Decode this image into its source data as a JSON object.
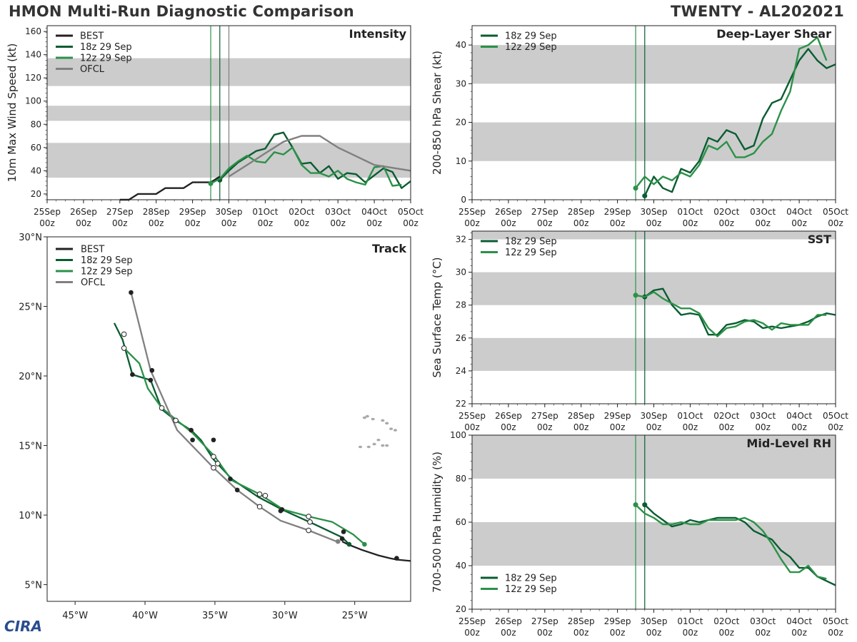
{
  "header": {
    "left": "HMON Multi-Run Diagnostic Comparison",
    "right": "TWENTY - AL202021"
  },
  "logo": {
    "text": "CIRA"
  },
  "time_ticks": [
    {
      "top": "25Sep",
      "bottom": "00z"
    },
    {
      "top": "26Sep",
      "bottom": "00z"
    },
    {
      "top": "27Sep",
      "bottom": "00z"
    },
    {
      "top": "28Sep",
      "bottom": "00z"
    },
    {
      "top": "29Sep",
      "bottom": "00z"
    },
    {
      "top": "30Sep",
      "bottom": "00z"
    },
    {
      "top": "01Oct",
      "bottom": "00z"
    },
    {
      "top": "02Oct",
      "bottom": "00z"
    },
    {
      "top": "03Oct",
      "bottom": "00z"
    },
    {
      "top": "04Oct",
      "bottom": "00z"
    },
    {
      "top": "05Oct",
      "bottom": "00z"
    }
  ],
  "colors": {
    "best": "#222222",
    "run18": "#0a5c32",
    "run12": "#2b9148",
    "ofcl": "#808080",
    "band": "#cccccc"
  },
  "chart_data": [
    {
      "id": "intensity",
      "type": "line",
      "title": "Intensity",
      "ylabel": "10m Max Wind Speed (kt)",
      "xlim": [
        0,
        10
      ],
      "ylim": [
        15,
        165
      ],
      "yticks": [
        20,
        40,
        60,
        80,
        100,
        120,
        140,
        160
      ],
      "bands": [
        [
          34,
          64
        ],
        [
          83,
          96
        ],
        [
          113,
          137
        ]
      ],
      "init_lines": [
        4.5,
        4.75,
        5.0
      ],
      "series": [
        {
          "name": "BEST",
          "color": "best",
          "x": [
            2,
            2.25,
            2.5,
            2.75,
            3,
            3.25,
            3.5,
            3.75,
            4,
            4.25,
            4.5,
            4.75
          ],
          "y": [
            15,
            15,
            20,
            20,
            20,
            25,
            25,
            25,
            30,
            30,
            30,
            35
          ]
        },
        {
          "name": "18z 29 Sep",
          "color": "run18",
          "marker_start": true,
          "x": [
            4.75,
            5,
            5.25,
            5.5,
            5.75,
            6,
            6.25,
            6.5,
            6.75,
            7,
            7.25,
            7.5,
            7.75,
            8,
            8.25,
            8.5,
            8.75,
            9,
            9.25,
            9.5,
            9.75,
            10
          ],
          "y": [
            32,
            40,
            47,
            52,
            57,
            59,
            71,
            73,
            60,
            46,
            47,
            38,
            44,
            33,
            38,
            37,
            30,
            36,
            42,
            39,
            25,
            31
          ]
        },
        {
          "name": "12z 29 Sep",
          "color": "run12",
          "marker_start": true,
          "x": [
            4.5,
            4.75,
            5,
            5.25,
            5.5,
            5.75,
            6,
            6.25,
            6.5,
            6.75,
            7,
            7.25,
            7.5,
            7.75,
            8,
            8.25,
            8.5,
            8.75,
            9,
            9.25,
            9.5,
            9.75
          ],
          "y": [
            29,
            33,
            42,
            48,
            53,
            48,
            47,
            56,
            54,
            60,
            45,
            38,
            38,
            35,
            40,
            33,
            30,
            28,
            43,
            44,
            27,
            28
          ]
        },
        {
          "name": "OFCL",
          "color": "ofcl",
          "x": [
            5,
            5.5,
            6,
            6.5,
            7,
            7.5,
            8,
            9,
            10
          ],
          "y": [
            35,
            45,
            55,
            65,
            70,
            70,
            60,
            45,
            40
          ]
        }
      ]
    },
    {
      "id": "shear",
      "type": "line",
      "title": "Deep-Layer Shear",
      "ylabel": "200-850 hPa Shear (kt)",
      "xlim": [
        0,
        10
      ],
      "ylim": [
        0,
        45
      ],
      "yticks": [
        0,
        10,
        20,
        30,
        40
      ],
      "bands": [
        [
          10,
          20
        ],
        [
          30,
          40
        ]
      ],
      "init_lines": [
        4.5,
        4.75
      ],
      "series": [
        {
          "name": "18z 29 Sep",
          "color": "run18",
          "marker_start": true,
          "x": [
            4.75,
            5,
            5.25,
            5.5,
            5.75,
            6,
            6.25,
            6.5,
            6.75,
            7,
            7.25,
            7.5,
            7.75,
            8,
            8.25,
            8.5,
            8.75,
            9,
            9.25,
            9.5,
            9.75,
            10
          ],
          "y": [
            1,
            6,
            3,
            2,
            8,
            7,
            10,
            16,
            15,
            18,
            17,
            13,
            14,
            21,
            25,
            26,
            31,
            36,
            39,
            36,
            34,
            35
          ]
        },
        {
          "name": "12z 29 Sep",
          "color": "run12",
          "marker_start": true,
          "x": [
            4.5,
            4.75,
            5,
            5.25,
            5.5,
            5.75,
            6,
            6.25,
            6.5,
            6.75,
            7,
            7.25,
            7.5,
            7.75,
            8,
            8.25,
            8.5,
            8.75,
            9,
            9.25,
            9.5,
            9.75
          ],
          "y": [
            3,
            6,
            4,
            6,
            5,
            7,
            6,
            9,
            14,
            13,
            15,
            11,
            11,
            12,
            15,
            17,
            23,
            28,
            39,
            40,
            42,
            36
          ]
        }
      ]
    },
    {
      "id": "sst",
      "type": "line",
      "title": "SST",
      "ylabel": "Sea Surface Temp (°C)",
      "xlim": [
        0,
        10
      ],
      "ylim": [
        22,
        32.5
      ],
      "yticks": [
        22,
        24,
        26,
        28,
        30,
        32
      ],
      "bands": [
        [
          24,
          26
        ],
        [
          28,
          30
        ],
        [
          32,
          32.5
        ]
      ],
      "init_lines": [
        4.5,
        4.75
      ],
      "series": [
        {
          "name": "18z 29 Sep",
          "color": "run18",
          "marker_start": true,
          "x": [
            4.75,
            5,
            5.25,
            5.5,
            5.75,
            6,
            6.25,
            6.5,
            6.75,
            7,
            7.25,
            7.5,
            7.75,
            8,
            8.25,
            8.5,
            8.75,
            9,
            9.25,
            9.5,
            9.75,
            10
          ],
          "y": [
            28.5,
            28.9,
            29.0,
            28.0,
            27.4,
            27.5,
            27.4,
            26.2,
            26.2,
            26.8,
            26.9,
            27.1,
            27.0,
            26.6,
            26.7,
            26.6,
            26.7,
            26.8,
            27.0,
            27.3,
            27.5,
            27.4
          ]
        },
        {
          "name": "12z 29 Sep",
          "color": "run12",
          "marker_start": true,
          "x": [
            4.5,
            4.75,
            5,
            5.25,
            5.5,
            5.75,
            6,
            6.25,
            6.5,
            6.75,
            7,
            7.25,
            7.5,
            7.75,
            8,
            8.25,
            8.5,
            8.75,
            9,
            9.25,
            9.5,
            9.75
          ],
          "y": [
            28.6,
            28.5,
            28.8,
            28.4,
            28.1,
            27.8,
            27.8,
            27.5,
            26.6,
            26.1,
            26.6,
            26.7,
            27.0,
            27.1,
            26.9,
            26.5,
            26.9,
            26.8,
            26.8,
            26.8,
            27.4,
            27.4
          ]
        }
      ]
    },
    {
      "id": "rh",
      "type": "line",
      "title": "Mid-Level RH",
      "ylabel": "700-500 hPa Humidity (%)",
      "xlim": [
        0,
        10
      ],
      "ylim": [
        20,
        100
      ],
      "yticks": [
        20,
        40,
        60,
        80,
        100
      ],
      "bands": [
        [
          40,
          60
        ],
        [
          80,
          100
        ]
      ],
      "init_lines": [
        4.5,
        4.75
      ],
      "legend_pos": "bottom-left",
      "series": [
        {
          "name": "18z 29 Sep",
          "color": "run18",
          "marker_start": true,
          "x": [
            4.75,
            5,
            5.25,
            5.5,
            5.75,
            6,
            6.25,
            6.5,
            6.75,
            7,
            7.25,
            7.5,
            7.75,
            8,
            8.25,
            8.5,
            8.75,
            9,
            9.25,
            9.5,
            9.75,
            10
          ],
          "y": [
            68,
            64,
            61,
            58,
            59,
            61,
            60,
            61,
            62,
            62,
            62,
            60,
            56,
            54,
            52,
            47,
            44,
            39,
            39,
            35,
            33,
            31
          ]
        },
        {
          "name": "12z 29 Sep",
          "color": "run12",
          "marker_start": true,
          "x": [
            4.5,
            4.75,
            5,
            5.25,
            5.5,
            5.75,
            6,
            6.25,
            6.5,
            6.75,
            7,
            7.25,
            7.5,
            7.75,
            8,
            8.25,
            8.5,
            8.75,
            9,
            9.25,
            9.5,
            9.75
          ],
          "y": [
            68,
            64,
            62,
            59,
            59,
            60,
            59,
            59,
            61,
            61,
            61,
            61,
            62,
            60,
            56,
            50,
            43,
            37,
            37,
            40,
            35,
            34
          ]
        }
      ]
    },
    {
      "id": "track",
      "type": "line",
      "title": "Track",
      "xlabel": "",
      "ylabel": "",
      "xlim": [
        -47,
        -21
      ],
      "ylim": [
        3.8,
        30
      ],
      "xticks": [
        {
          "v": -45,
          "t": "45°W"
        },
        {
          "v": -40,
          "t": "40°W"
        },
        {
          "v": -35,
          "t": "35°W"
        },
        {
          "v": -30,
          "t": "30°W"
        },
        {
          "v": -25,
          "t": "25°W"
        }
      ],
      "yticks": [
        {
          "v": 5,
          "t": "5°N"
        },
        {
          "v": 10,
          "t": "10°N"
        },
        {
          "v": 15,
          "t": "15°N"
        },
        {
          "v": 20,
          "t": "20°N"
        },
        {
          "v": 25,
          "t": "25°N"
        },
        {
          "v": 30,
          "t": "30°N"
        }
      ],
      "series": [
        {
          "name": "BEST",
          "color": "best",
          "x": [
            -21,
            -22,
            -22.5,
            -23.3,
            -24.5,
            -25.5,
            -25.9
          ],
          "y": [
            6.7,
            6.8,
            6.9,
            7.1,
            7.5,
            7.9,
            8.1
          ]
        },
        {
          "name": "18z 29 Sep",
          "color": "run18",
          "x": [
            -25.4,
            -25.9,
            -27.8,
            -30.2,
            -31.9,
            -33.8,
            -35.1,
            -36.0,
            -36.7,
            -37.8,
            -38.8,
            -39.6,
            -40.9,
            -41.6,
            -42.2
          ],
          "y": [
            7.9,
            8.4,
            9.3,
            10.4,
            11.3,
            12.6,
            14.0,
            15.4,
            16.1,
            16.8,
            17.6,
            19.7,
            20.1,
            22.6,
            23.8
          ]
        },
        {
          "name": "12z 29 Sep",
          "color": "run12",
          "x": [
            -24.3,
            -25.1,
            -26.6,
            -28.3,
            -30.1,
            -31.8,
            -33.8,
            -35.0,
            -36.6,
            -38.8,
            -39.8,
            -40.4,
            -41.4
          ],
          "y": [
            7.9,
            8.6,
            9.5,
            9.9,
            10.4,
            11.5,
            12.5,
            14.2,
            15.9,
            17.7,
            19.1,
            20.9,
            21.9
          ]
        },
        {
          "name": "OFCL",
          "color": "ofcl",
          "x": [
            -26.3,
            -28.3,
            -30.3,
            -31.8,
            -33.4,
            -35.1,
            -37.7,
            -39.6,
            -41.0
          ],
          "y": [
            8.1,
            8.9,
            9.6,
            10.6,
            11.8,
            13.4,
            16.1,
            20.4,
            26.0
          ]
        }
      ],
      "markers": [
        {
          "x": -22,
          "y": 6.9,
          "fill": "best",
          "hollow": false
        },
        {
          "x": -25.9,
          "y": 8.3,
          "fill": "best",
          "hollow": false
        },
        {
          "x": -26.2,
          "y": 8.1,
          "fill": "ofcl",
          "hollow": false
        },
        {
          "x": -25.4,
          "y": 7.9,
          "fill": "run18",
          "hollow": false
        },
        {
          "x": -24.3,
          "y": 7.9,
          "fill": "run12",
          "hollow": false
        },
        {
          "x": -25.8,
          "y": 8.8,
          "fill": "best",
          "hollow": false
        },
        {
          "x": -30.2,
          "y": 10.4,
          "fill": "best",
          "hollow": false
        },
        {
          "x": -30.3,
          "y": 10.3,
          "fill": "best",
          "hollow": false
        },
        {
          "x": -33.4,
          "y": 11.8,
          "fill": "best",
          "hollow": false
        },
        {
          "x": -33.9,
          "y": 12.6,
          "fill": "best",
          "hollow": false
        },
        {
          "x": -35.1,
          "y": 15.4,
          "fill": "best",
          "hollow": false
        },
        {
          "x": -36.6,
          "y": 15.4,
          "fill": "best",
          "hollow": false
        },
        {
          "x": -36.7,
          "y": 16.1,
          "fill": "best",
          "hollow": false
        },
        {
          "x": -39.6,
          "y": 19.7,
          "fill": "best",
          "hollow": false
        },
        {
          "x": -40.9,
          "y": 20.1,
          "fill": "best",
          "hollow": false
        },
        {
          "x": -39.5,
          "y": 20.4,
          "fill": "best",
          "hollow": false
        },
        {
          "x": -41.0,
          "y": 26.0,
          "fill": "best",
          "hollow": false
        },
        {
          "x": -28.3,
          "y": 8.9,
          "fill": "white",
          "hollow": true
        },
        {
          "x": -28.3,
          "y": 9.9,
          "fill": "white",
          "hollow": true
        },
        {
          "x": -28.2,
          "y": 9.5,
          "fill": "white",
          "hollow": true
        },
        {
          "x": -31.8,
          "y": 10.6,
          "fill": "white",
          "hollow": true
        },
        {
          "x": -31.8,
          "y": 11.5,
          "fill": "white",
          "hollow": true
        },
        {
          "x": -31.4,
          "y": 11.4,
          "fill": "white",
          "hollow": true
        },
        {
          "x": -35.1,
          "y": 13.4,
          "fill": "white",
          "hollow": true
        },
        {
          "x": -34.8,
          "y": 13.7,
          "fill": "white",
          "hollow": true
        },
        {
          "x": -35.1,
          "y": 14.2,
          "fill": "white",
          "hollow": true
        },
        {
          "x": -37.8,
          "y": 16.8,
          "fill": "white",
          "hollow": true
        },
        {
          "x": -38.8,
          "y": 17.7,
          "fill": "white",
          "hollow": true
        },
        {
          "x": -41.5,
          "y": 22.0,
          "fill": "white",
          "hollow": true
        },
        {
          "x": -41.5,
          "y": 23.0,
          "fill": "white",
          "hollow": true
        }
      ],
      "islands": [
        [
          -24.1,
          17.1
        ],
        [
          -24.3,
          17.0
        ],
        [
          -23.7,
          16.9
        ],
        [
          -23.0,
          16.8
        ],
        [
          -22.7,
          16.6
        ],
        [
          -22.4,
          16.2
        ],
        [
          -22.1,
          16.1
        ],
        [
          -23.3,
          15.4
        ],
        [
          -23.6,
          15.1
        ],
        [
          -23.0,
          15.0
        ],
        [
          -24.0,
          14.9
        ],
        [
          -22.7,
          15.0
        ],
        [
          -24.6,
          14.9
        ]
      ]
    }
  ]
}
